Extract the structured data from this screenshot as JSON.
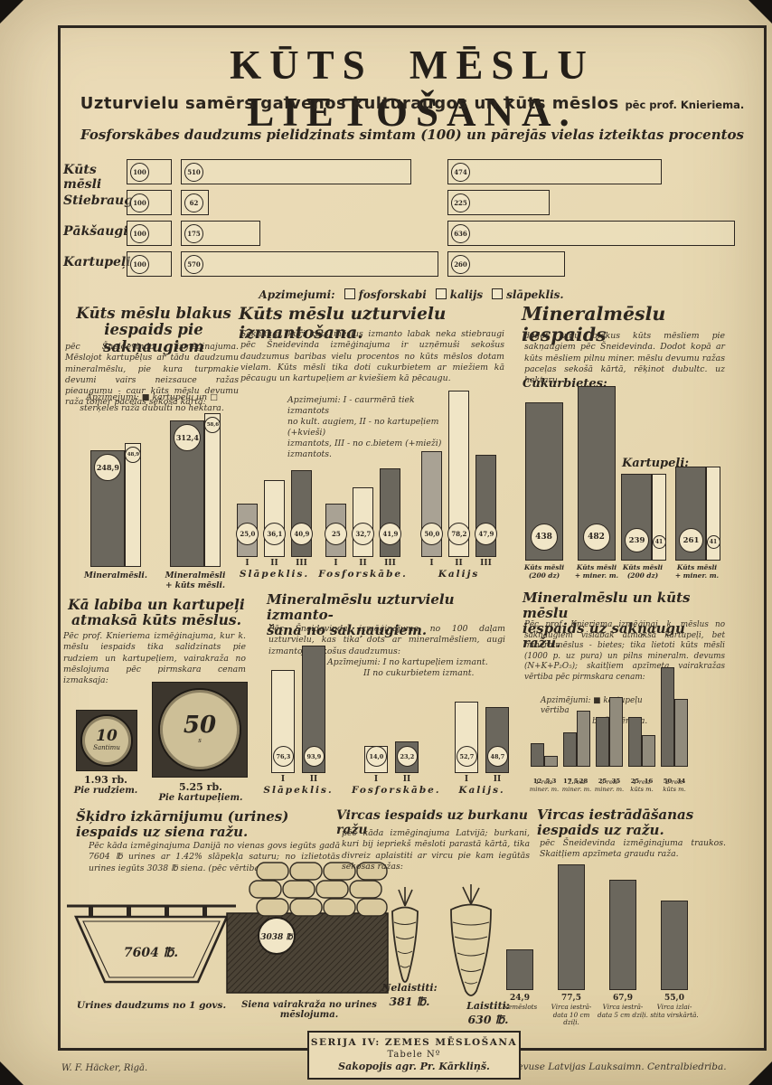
{
  "header": {
    "title": "KŪTS MĒSLU LIETOŠANA.",
    "subtitle": "Uzturvielu samērs galvenos kulturaugos un kūts mēslos",
    "subtitle_note": "pēc prof. Knieriema.",
    "caption": "Fosforskābes daudzums pielidzinats simtam (100) un pārejās vielas izteiktas procentos"
  },
  "top_legend": {
    "prefix": "Apzimejumi:",
    "items": [
      {
        "swatch": "outline",
        "label": "fosforskabi"
      },
      {
        "swatch": "outline",
        "label": "kalijs"
      },
      {
        "swatch": "outline",
        "label": "slāpeklis."
      }
    ]
  },
  "colors": {
    "paper": "#e8d9b3",
    "ink": "#2c2620",
    "bar_dark": "#6b675d",
    "bar_light": "#a9a294",
    "bar_white": "#f0e5c6",
    "bar_gray": "#918b7c"
  },
  "chart_data": [
    {
      "id": "nutrient-ratio",
      "type": "bar",
      "orientation": "horizontal",
      "title": "Fosforskābes daudzums pielidzinats simtam (100) un pārejās vielas izteiktas procentos",
      "categories": [
        "Kūts mēsli",
        "Stiebraugi",
        "Pākšaugi",
        "Kartupeļi"
      ],
      "series": [
        {
          "name": "fosforskabi",
          "values": [
            100,
            100,
            100,
            100
          ]
        },
        {
          "name": "kalijs",
          "values": [
            510,
            62,
            175,
            570
          ]
        },
        {
          "name": "slāpeklis",
          "values": [
            474,
            225,
            636,
            260
          ]
        }
      ]
    },
    {
      "id": "manure-side-effect",
      "type": "bar",
      "groups": [
        {
          "caption_lines": [
            "Mineralmēsli."
          ],
          "bars": [
            {
              "label": "248,9",
              "value": 248.9,
              "kind": "dark"
            },
            {
              "label": "48,9",
              "value": 48.9,
              "kind": "white"
            }
          ]
        },
        {
          "caption_lines": [
            "Mineralmēsli",
            "+ kūts mēsli."
          ],
          "bars": [
            {
              "label": "312,4",
              "value": 312.4,
              "kind": "dark"
            },
            {
              "label": "58,6",
              "value": 58.6,
              "kind": "white"
            }
          ]
        }
      ]
    },
    {
      "id": "manure-utilization",
      "type": "bar",
      "group_labels": [
        "Slāpeklis.",
        "Fosforskābe.",
        "Kalijs"
      ],
      "bar_labels": [
        "I",
        "II",
        "III"
      ],
      "kinds": [
        "light",
        "white",
        "dark"
      ],
      "values": [
        [
          25.0,
          36.1,
          40.9
        ],
        [
          25,
          32.7,
          41.9
        ],
        [
          50.0,
          78.2,
          47.9
        ]
      ],
      "display": [
        [
          "25,0",
          "36,1",
          "40,9"
        ],
        [
          "25",
          "32,7",
          "41,9"
        ],
        [
          "50,0",
          "78,2",
          "47,9"
        ]
      ]
    },
    {
      "id": "mineral-effect",
      "type": "bar",
      "cukurbietes": {
        "label": "Cukurbietes:",
        "bars": [
          {
            "label": "438",
            "value": 438,
            "caption": [
              "Kūts mēsli",
              "(200 dz)"
            ]
          },
          {
            "label": "482",
            "value": 482,
            "caption": [
              "Kūts mēsli",
              "+ miner. m."
            ]
          }
        ]
      },
      "kartupeli": {
        "label": "Kartupeļi:",
        "groups": [
          {
            "main": "239",
            "main_value": 239,
            "sub": "41",
            "caption": [
              "Kūts mēsli",
              "(200 dz)"
            ]
          },
          {
            "main": "261",
            "main_value": 261,
            "sub": "41",
            "caption": [
              "Kūts mēsli",
              "+ miner. m."
            ]
          }
        ]
      }
    },
    {
      "id": "mineral-utilization",
      "type": "bar",
      "group_labels": [
        "Slāpeklis.",
        "Fosforskābe.",
        "Kalijs."
      ],
      "bar_labels": [
        "I",
        "II"
      ],
      "kinds": [
        "white",
        "dark"
      ],
      "values": [
        [
          76.3,
          93.9
        ],
        [
          14.0,
          23.2
        ],
        [
          52.7,
          48.7
        ]
      ],
      "display": [
        [
          "76,3",
          "93,9"
        ],
        [
          "14,0",
          "23,2"
        ],
        [
          "52,7",
          "48,7"
        ]
      ]
    },
    {
      "id": "mineral-vs-manure-yield",
      "type": "bar",
      "series_names": [
        "kartupeļu vērtiba",
        "biešu vērtiba"
      ],
      "groups": [
        {
          "values": [
            12,
            5.3
          ],
          "display": [
            "12",
            "5,3"
          ],
          "caption": [
            "1 reiz",
            "miner. m."
          ]
        },
        {
          "values": [
            17.5,
            28
          ],
          "display": [
            "17,5",
            "28"
          ],
          "caption": [
            "2 reiz",
            "miner. m."
          ]
        },
        {
          "values": [
            25,
            35
          ],
          "display": [
            "25",
            "35"
          ],
          "caption": [
            "3 reiz",
            "miner. m."
          ]
        },
        {
          "values": [
            25,
            16
          ],
          "display": [
            "25",
            "16"
          ],
          "caption": [
            "1 reiz",
            "kūts m."
          ]
        },
        {
          "values": [
            50,
            34
          ],
          "display": [
            "50",
            "34"
          ],
          "caption": [
            "2 reiz",
            "kūts m."
          ]
        }
      ]
    },
    {
      "id": "slurry-incorporation",
      "type": "bar",
      "bars": [
        {
          "value": 24.9,
          "display": "24,9",
          "caption": [
            "Nemēslots"
          ]
        },
        {
          "value": 77.5,
          "display": "77,5",
          "caption": [
            "Virca iestrā-",
            "data 10 cm dziļi."
          ]
        },
        {
          "value": 67.9,
          "display": "67,9",
          "caption": [
            "Virca iestrā-",
            "data 5 cm dziļi."
          ]
        },
        {
          "value": 55.0,
          "display": "55,0",
          "caption": [
            "Virca izlai-",
            "stita virskārtā."
          ]
        }
      ]
    }
  ],
  "sections": {
    "s1a": {
      "heading_lines": [
        "Kūts mēslu blakus",
        "iespaids pie sakņaugiem"
      ],
      "body": "pēc Šneidevinda izmēģinajuma. Mēslojot kartupeļus ar tādu daudzumu mineralmēslu, pie kura turpmakie devumi vairs neizsauce ražas pieaugumu - caur kūts mēslu devumu raža tomer paceļas sekošā kārtā:",
      "legend": "Apzimejumi: ■ kartupeļu un □ sterķeles raža dubulti no hektara."
    },
    "s1b": {
      "heading": "Kūts mēslu uzturvielu izmantošana.",
      "body": "Sakņaugi, kuri kūts mēslus izmanto labak neka stiebraugi pēc Šneidevinda izmēģinajuma ir uzņēmuši sekošus daudzumus baribas vielu procentos no kūts mēslos dotam vielam. Kūts mēsli tika doti cukurbietem ar miežiem kā pēcaugu un kartupeļiem ar kviešiem kā pēcaugu.",
      "legend_lines": [
        "Apzimejumi: I - caurmērā tiek izmantots",
        "no kult. augiem, II - no kartupeļiem (+kvieši)",
        "izmantots, III - no c.bietem (+mieži) izmantots."
      ]
    },
    "s1c": {
      "heading": "Mineralmēslu iespaids",
      "body": "dodot viņu blakus kūts mēsliem pie sakņaugiem pēc Šneidevinda. Dodot kopā ar kūts mēsliem pilnu miner. mēslu devumu ražas paceļas sekošā kārtā, rēķinot dubultc. uz hektaru."
    },
    "s2a": {
      "heading_lines": [
        "Kā labiba un kartupeļi",
        "atmaksā kūts mēslus."
      ],
      "body": "Pēc prof. Knieriema izmēģinajuma, kur k. mēslu iespaids tika salidzinats pie rudziem un kartupeļiem, vairakraža no mēslojuma pēc pirmskara cenam izmaksaja:",
      "coins": [
        {
          "face": "10",
          "face_sub": "Santimu",
          "price": "1.93 rb.",
          "label": "Pie rudziem."
        },
        {
          "face": "50",
          "face_sub": "s",
          "price": "5.25 rb.",
          "label": "Pie kartupeļiem."
        }
      ]
    },
    "s2b": {
      "heading_lines": [
        "Mineralmēslu uzturvielu izmanto-",
        "šana no sakņaugiem."
      ],
      "body": "Pēc Šneidevinda izmēģinajuma no 100 daļam uzturvielu, kas tika dots ar mineralmēsliem, augi izmantoja sekošus daudzumus:",
      "legend_lines": [
        "Apzīmejumi: I no kartupeļiem izmant.",
        "II no cukurbietem izmant."
      ]
    },
    "s2c": {
      "heading_lines": [
        "Mineralmēslu un kūts mēslu",
        "iespaids uz sakņaugu ražu."
      ],
      "body": "Pēc prof. Knieriema izmēģinaj. k. mēslus no sakņaugiem vislabak atmaksā kartupeļi, bet mineralmēslus - bietes; tika lietoti kūts mēsli (1000 p. uz pura) un pilns mineralm. devums (N+K+P₂O₅); skaitļiem apzīmeta vairakražas vērtiba pēc pirmskara cenam:",
      "legend_lines": [
        "Apzimējumi: ■ kartupeļu vērtiba",
        "▨ biešu vērtiba."
      ]
    },
    "s3a": {
      "heading": "Šķidro izkārnijumu (urines) iespaids uz siena ražu.",
      "body": "Pēc kāda izmēginajuma Danijā no vienas govs iegūts gadā 7604 ℔ urines ar 1.42% slāpekļa saturu; no izlietotās urines iegūts 3038 ℔ siena. (pēc vērtibas)",
      "tank_value": "7604 ℔.",
      "tank_caption": "Urines daudzums no 1 govs.",
      "hay_value": "3038 ℔",
      "hay_caption": "Siena vairakraža no urines mēslojuma."
    },
    "s3b": {
      "heading": "Vircas iespaids uz burkanu ražu",
      "body": "pēc kāda izmēginajuma Latvijā; burkani, kuri bij iepriekš mēsloti parastā kārtā, tika divreiz aplaistiti ar vircu pie kam iegūtās sekošas ražas:",
      "labels": [
        {
          "name": "Nelaistiti:",
          "value": "381 ℔."
        },
        {
          "name": "Laistiti:",
          "value": "630 ℔."
        }
      ]
    },
    "s3c": {
      "heading_lines": [
        "Vircas iestrādāšanas",
        "iespaids uz ražu."
      ],
      "body": "pēc Šneidevinda izmēginajuma traukos. Skaitļiem apzīmeta graudu raža."
    }
  },
  "footer": {
    "stamp_lines": [
      "SERIJA IV: ZEMES MĒSLOŠANA",
      "Tabele Nº",
      "Sakopojis agr. Pr. Kārkliņš."
    ],
    "left_credit": "W. F. Häcker, Rigā.",
    "right_credit": "Izdevuse Latvijas Lauksaimn. Centralbiedriba."
  }
}
